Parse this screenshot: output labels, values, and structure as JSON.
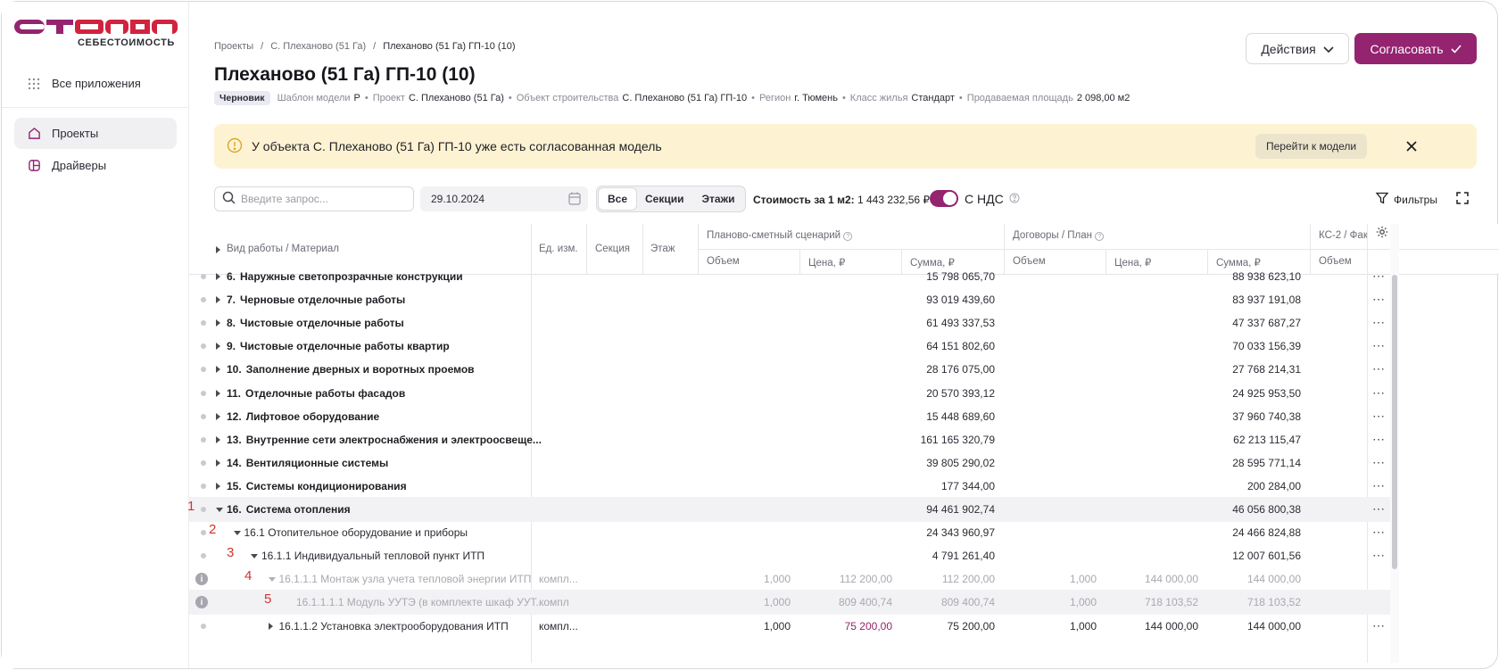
{
  "brand": {
    "logo_text": "СТРАНА",
    "subtitle": "СЕБЕСТОИМОСТЬ",
    "accent": "#94246f"
  },
  "sidebar": {
    "all_apps": "Все приложения",
    "items": [
      {
        "label": "Проекты",
        "icon": "home-icon",
        "active": true
      },
      {
        "label": "Драйверы",
        "icon": "layout-icon",
        "active": false
      }
    ]
  },
  "breadcrumbs": [
    "Проекты",
    "С. Плеханово (51 Га)",
    "Плеханово (51 Га) ГП-10 (10)"
  ],
  "page": {
    "title": "Плеханово (51 Га) ГП-10 (10)",
    "status_badge": "Черновик",
    "meta": [
      {
        "k": "Шаблон модели",
        "v": "Р"
      },
      {
        "k": "Проект",
        "v": "С. Плеханово (51 Га)"
      },
      {
        "k": "Объект строительства",
        "v": "С. Плеханово (51 Га) ГП-10"
      },
      {
        "k": "Регион",
        "v": "г. Тюмень"
      },
      {
        "k": "Класс жилья",
        "v": "Стандарт"
      },
      {
        "k": "Продаваемая площадь",
        "v": "2 098,00 м2"
      }
    ],
    "actions_label": "Действия",
    "approve_label": "Согласовать"
  },
  "banner": {
    "text": "У объекта С. Плеханово (51 Га) ГП-10 уже есть согласованная модель",
    "goto_label": "Перейти к модели"
  },
  "toolbar": {
    "search_placeholder": "Введите запрос...",
    "date": "29.10.2024",
    "segments": [
      "Все",
      "Секции",
      "Этажи"
    ],
    "cost_label": "Стоимость за 1 м2:",
    "cost_value": "1 443 232,56 ₽",
    "vat_label": "С НДС",
    "vat_on": true,
    "filters_label": "Фильтры"
  },
  "table": {
    "headers": {
      "name": "Вид работы / Материал",
      "unit": "Ед. изм.",
      "section": "Секция",
      "floor": "Этаж",
      "group1": "Планово-сметный сценарий",
      "group2": "Договоры / План",
      "group3": "КС-2 / Фак",
      "volume": "Объем",
      "price": "Цена, ₽",
      "sum": "Сумма, ₽"
    },
    "rows": [
      {
        "num": "6.",
        "name": "Наружные светопрозрачные конструкции",
        "sum1": "15 798 065,70",
        "sum2": "88 938 623,10",
        "level": 0,
        "style": "b",
        "caret": "r"
      },
      {
        "num": "7.",
        "name": "Черновые отделочные работы",
        "sum1": "93 019 439,60",
        "sum2": "83 937 191,08",
        "level": 0,
        "style": "b",
        "caret": "r"
      },
      {
        "num": "8.",
        "name": "Чистовые отделочные работы",
        "sum1": "61 493 337,53",
        "sum2": "47 337 687,27",
        "level": 0,
        "style": "b",
        "caret": "r"
      },
      {
        "num": "9.",
        "name": "Чистовые отделочные работы квартир",
        "sum1": "64 151 802,60",
        "sum2": "70 033 156,39",
        "level": 0,
        "style": "b",
        "caret": "r"
      },
      {
        "num": "10.",
        "name": "Заполнение дверных и воротных проемов",
        "sum1": "28 176 075,00",
        "sum2": "27 768 214,31",
        "level": 0,
        "style": "b",
        "caret": "r"
      },
      {
        "num": "11.",
        "name": "Отделочные работы фасадов",
        "sum1": "20 570 393,12",
        "sum2": "24 925 953,50",
        "level": 0,
        "style": "b",
        "caret": "r"
      },
      {
        "num": "12.",
        "name": "Лифтовое оборудование",
        "sum1": "15 448 689,60",
        "sum2": "37 960 740,38",
        "level": 0,
        "style": "b",
        "caret": "r"
      },
      {
        "num": "13.",
        "name": "Внутренние сети электроснабжения и электроосвеще...",
        "sum1": "161 165 320,79",
        "sum2": "62 213 115,47",
        "level": 0,
        "style": "b",
        "caret": "r"
      },
      {
        "num": "14.",
        "name": "Вентиляционные системы",
        "sum1": "39 805 290,02",
        "sum2": "28 595 771,14",
        "level": 0,
        "style": "b",
        "caret": "r"
      },
      {
        "num": "15.",
        "name": "Системы кондиционирования",
        "sum1": "177 344,00",
        "sum2": "200 284,00",
        "level": 0,
        "style": "b",
        "caret": "r"
      },
      {
        "num": "16.",
        "name": "Система отопления",
        "sum1": "94 461 902,74",
        "sum2": "46 056 800,38",
        "level": 0,
        "style": "b",
        "caret": "d",
        "highlight": true,
        "marker": "1"
      },
      {
        "num": "",
        "name": "16.1 Отопительное оборудование и приборы",
        "sum1": "24 343 960,97",
        "sum2": "24 466 824,88",
        "level": 1,
        "style": "n",
        "caret": "d",
        "marker": "2"
      },
      {
        "num": "",
        "name": "16.1.1 Индивидуальный тепловой пункт ИТП",
        "sum1": "4 791 261,40",
        "sum2": "12 007 601,56",
        "level": 2,
        "style": "n",
        "caret": "d",
        "marker": "3"
      },
      {
        "num": "",
        "name": "16.1.1.1 Монтаж узла учета тепловой энергии ИТП",
        "unit": "компл...",
        "vol1": "1,000",
        "price1": "112 200,00",
        "sum1": "112 200,00",
        "vol2": "1,000",
        "price2": "144 000,00",
        "sum2": "144 000,00",
        "level": 3,
        "style": "m",
        "caret": "d",
        "info": true,
        "muted": true,
        "marker": "4"
      },
      {
        "num": "",
        "name": "16.1.1.1.1 Модуль УУТЭ (в комплекте шкаф УУТ...",
        "unit": "компл",
        "vol1": "1,000",
        "price1": "809 400,74",
        "sum1": "809 400,74",
        "vol2": "1,000",
        "price2": "718 103,52",
        "sum2": "718 103,52",
        "level": 4,
        "style": "m",
        "caret": "",
        "info": true,
        "muted": true,
        "highlight": true,
        "marker": "5"
      },
      {
        "num": "",
        "name": "16.1.1.2 Установка электрооборудования ИТП",
        "unit": "компл...",
        "vol1": "1,000",
        "price1": "75 200,00",
        "sum1": "75 200,00",
        "vol2": "1,000",
        "price2": "144 000,00",
        "sum2": "144 000,00",
        "level": 3,
        "style": "n",
        "caret": "r",
        "accent_price": true
      }
    ]
  }
}
